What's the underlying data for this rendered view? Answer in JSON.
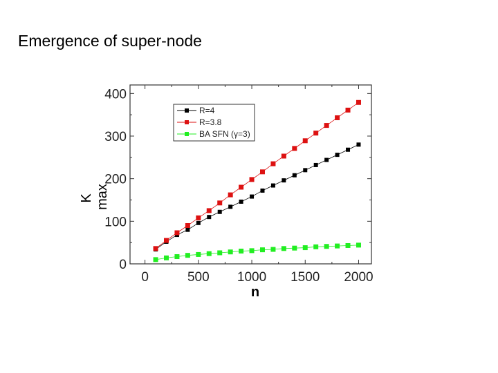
{
  "slide": {
    "title": "Emergence of super-node"
  },
  "chart_data": {
    "type": "line",
    "xlabel": "n",
    "ylabel_main": "K",
    "ylabel_sub": "max",
    "xlim": [
      -140,
      2120
    ],
    "ylim": [
      0,
      420
    ],
    "xticks": [
      0,
      500,
      1000,
      1500,
      2000
    ],
    "yticks": [
      0,
      100,
      200,
      300,
      400
    ],
    "legend_position": "top-center",
    "grid": false,
    "x": [
      100,
      200,
      300,
      400,
      500,
      600,
      700,
      800,
      900,
      1000,
      1100,
      1200,
      1300,
      1400,
      1500,
      1600,
      1700,
      1800,
      1900,
      2000
    ],
    "series": [
      {
        "name": "R=4",
        "color": "#000000",
        "values": [
          34,
          52,
          68,
          80,
          96,
          110,
          122,
          134,
          146,
          158,
          172,
          184,
          196,
          208,
          220,
          232,
          244,
          256,
          268,
          280
        ]
      },
      {
        "name": "R=3.8",
        "color": "#dd1111",
        "values": [
          36,
          55,
          73,
          90,
          108,
          125,
          143,
          162,
          180,
          198,
          216,
          235,
          253,
          271,
          289,
          307,
          325,
          343,
          361,
          379
        ]
      },
      {
        "name": "BA SFN (γ=3)",
        "color": "#22ee22",
        "values": [
          10,
          14,
          17,
          20,
          22,
          24,
          26,
          28,
          30,
          31,
          33,
          34,
          36,
          37,
          38,
          40,
          41,
          42,
          43,
          44
        ]
      }
    ]
  }
}
